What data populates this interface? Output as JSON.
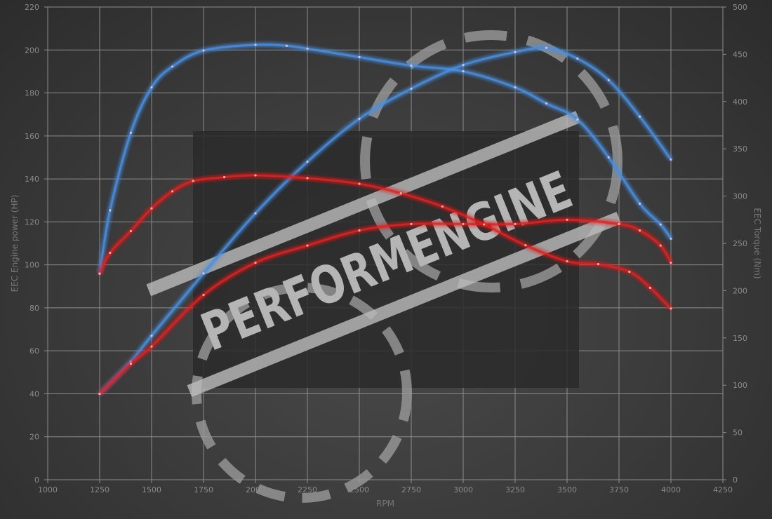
{
  "watermark": {
    "logo_text": "PERFORMENGINE"
  },
  "chart_data": {
    "type": "line",
    "xlabel": "RPM",
    "ylabel": "EEC Engine power (HP)",
    "y2label": "EEC Torque (Nm)",
    "xlim": [
      1000,
      4250
    ],
    "ylim": [
      0,
      220
    ],
    "y2lim": [
      0,
      500
    ],
    "xticks": [
      1000,
      1250,
      1500,
      1750,
      2000,
      2250,
      2500,
      2750,
      3000,
      3250,
      3500,
      3750,
      4000,
      4250
    ],
    "yticks": [
      0,
      20,
      40,
      60,
      80,
      100,
      120,
      140,
      160,
      180,
      200,
      220
    ],
    "y2ticks": [
      0,
      50,
      100,
      150,
      200,
      250,
      300,
      350,
      400,
      450,
      500
    ],
    "grid": true,
    "colors": {
      "tuned": "#4a90e2",
      "stock": "#e02020"
    },
    "series": [
      {
        "axis": "left",
        "color": "#4a90e2",
        "x": [
          1250,
          1400,
          1500,
          1750,
          2000,
          2250,
          2500,
          2750,
          3000,
          3250,
          3400,
          3550,
          3700,
          3850,
          4000
        ],
        "values": [
          40,
          55,
          67,
          96,
          124,
          148,
          168,
          182,
          193,
          199,
          201,
          196,
          186,
          169,
          149
        ]
      },
      {
        "axis": "left",
        "color": "#e02020",
        "x": [
          1250,
          1400,
          1500,
          1750,
          2000,
          2250,
          2500,
          2750,
          3000,
          3250,
          3500,
          3750,
          3850,
          3950,
          4000
        ],
        "values": [
          40,
          54,
          62,
          86,
          101,
          109,
          116,
          119,
          119,
          119,
          121,
          119,
          116,
          109,
          101
        ]
      },
      {
        "axis": "right",
        "color": "#4a90e2",
        "x": [
          1250,
          1300,
          1400,
          1500,
          1600,
          1750,
          2000,
          2150,
          2250,
          2500,
          2750,
          3000,
          3250,
          3400,
          3550,
          3700,
          3850,
          3950,
          4000
        ],
        "values": [
          218,
          285,
          367,
          415,
          437,
          454,
          460,
          459,
          456,
          447,
          438,
          432,
          415,
          398,
          381,
          341,
          292,
          270,
          255
        ]
      },
      {
        "axis": "right",
        "color": "#e02020",
        "x": [
          1250,
          1300,
          1400,
          1500,
          1600,
          1700,
          1850,
          2000,
          2250,
          2500,
          2700,
          2900,
          3100,
          3300,
          3500,
          3650,
          3800,
          3900,
          4000
        ],
        "values": [
          218,
          240,
          263,
          287,
          305,
          316,
          320,
          322,
          319,
          313,
          303,
          289,
          270,
          248,
          231,
          228,
          220,
          203,
          181
        ]
      }
    ]
  }
}
